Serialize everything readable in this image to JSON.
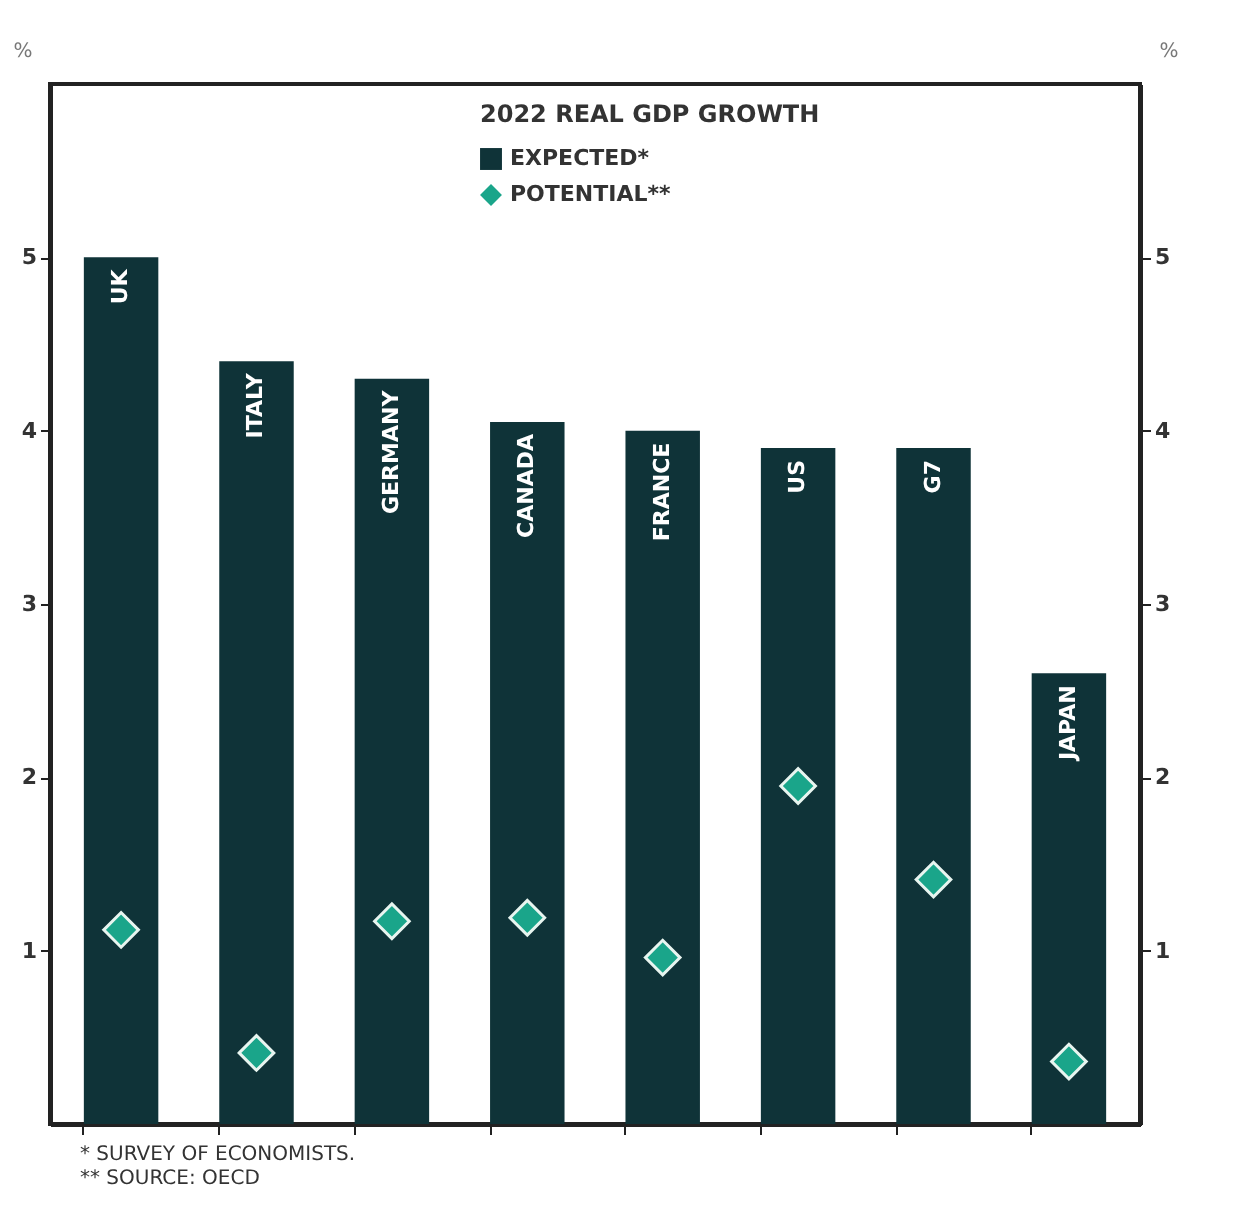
{
  "chart_data": {
    "type": "bar",
    "legend_title": "2022 REAL GDP GROWTH",
    "ylabel": "%",
    "y2label": "%",
    "categories": [
      "UK",
      "ITALY",
      "GERMANY",
      "CANADA",
      "FRANCE",
      "US",
      "G7",
      "JAPAN"
    ],
    "series": [
      {
        "name": "EXPECTED*",
        "color": "#0f3338",
        "values": [
          5.0,
          4.4,
          4.3,
          4.05,
          4.0,
          3.9,
          3.9,
          2.6
        ]
      },
      {
        "name": "POTENTIAL**",
        "type": "scatter",
        "marker": "diamond",
        "color": "#1aa58a",
        "values": [
          1.12,
          0.41,
          1.17,
          1.19,
          0.96,
          1.95,
          1.41,
          0.36
        ]
      }
    ],
    "ylim": [
      0,
      6
    ],
    "yticks": [
      1,
      2,
      3,
      4,
      5
    ],
    "y2lim": [
      0,
      6
    ],
    "y2ticks": [
      1,
      2,
      3,
      4,
      5
    ],
    "grid": false,
    "legend": "top",
    "annotations": [
      "* SURVEY OF ECONOMISTS.",
      "** SOURCE: OECD"
    ]
  }
}
